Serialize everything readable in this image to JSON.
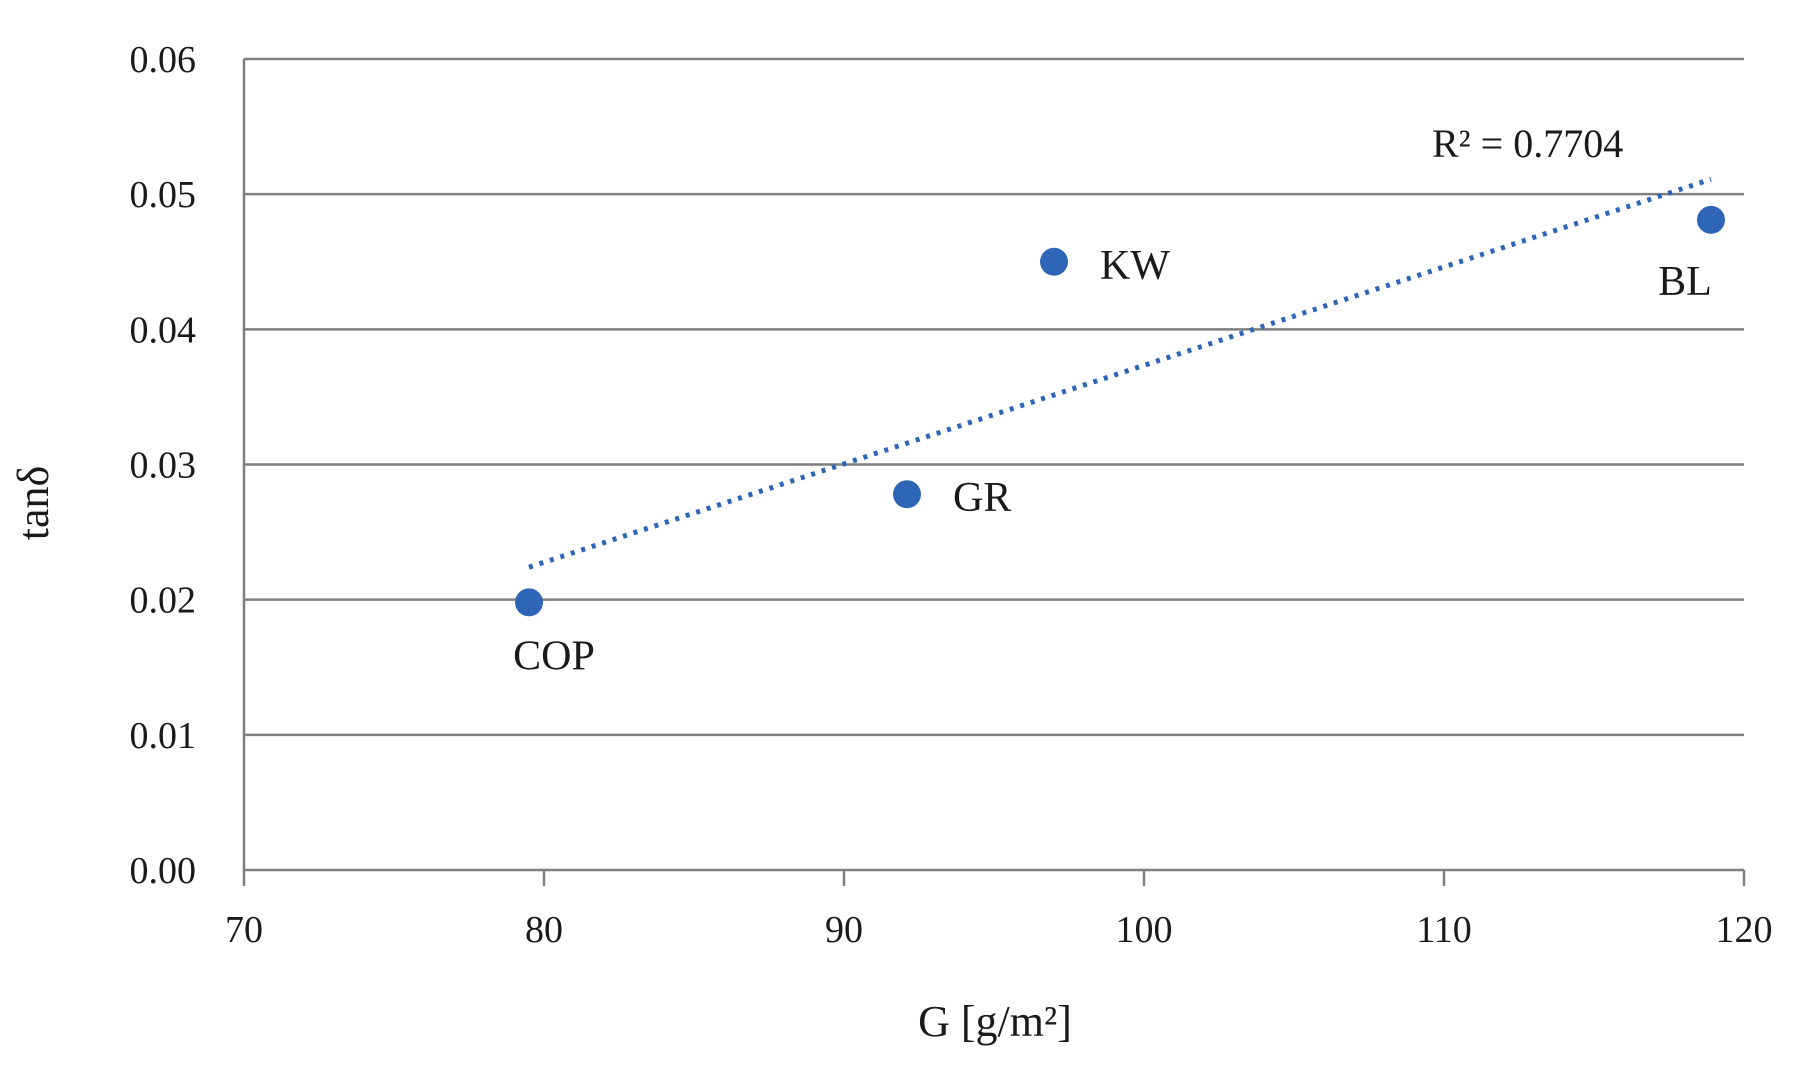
{
  "chart_data": {
    "type": "scatter",
    "title": "",
    "xlabel": "G [g/m²]",
    "ylabel": "tanδ",
    "xlim": [
      70,
      120
    ],
    "ylim": [
      0,
      0.06
    ],
    "xticks": [
      70,
      80,
      90,
      100,
      110,
      120
    ],
    "yticks": [
      0.0,
      0.01,
      0.02,
      0.03,
      0.04,
      0.05,
      0.06
    ],
    "xtick_labels": [
      "70",
      "80",
      "90",
      "100",
      "110",
      "120"
    ],
    "ytick_labels": [
      "0.00",
      "0.01",
      "0.02",
      "0.03",
      "0.04",
      "0.05",
      "0.06"
    ],
    "grid": "horizontal",
    "series": [
      {
        "name": "samples",
        "color": "#2f65b7",
        "points": [
          {
            "label": "COP",
            "x": 79.5,
            "y": 0.0198
          },
          {
            "label": "GR",
            "x": 92.1,
            "y": 0.0278
          },
          {
            "label": "KW",
            "x": 97.0,
            "y": 0.045
          },
          {
            "label": "BL",
            "x": 118.9,
            "y": 0.0481
          }
        ]
      }
    ],
    "trendline": {
      "type": "linear",
      "style": "dotted",
      "color": "#2f65b7",
      "x_range": [
        79.5,
        118.9
      ],
      "y_range": [
        0.0224,
        0.0511
      ],
      "annotation": "R² = 0.7704"
    }
  }
}
